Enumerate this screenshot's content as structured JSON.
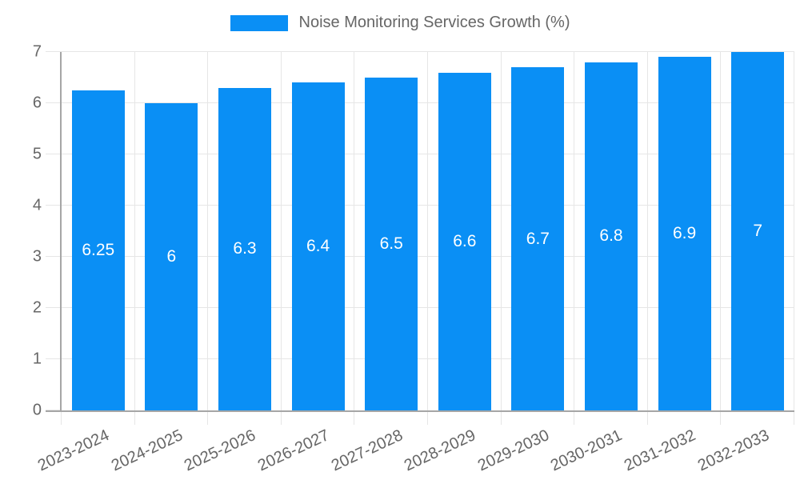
{
  "chart_data": {
    "type": "bar",
    "title": "Noise Monitoring Services Growth (%)",
    "legend": {
      "position": "top",
      "label": "Noise Monitoring Services Growth (%)"
    },
    "categories": [
      "2023-2024",
      "2024-2025",
      "2025-2026",
      "2026-2027",
      "2027-2028",
      "2028-2029",
      "2029-2030",
      "2030-2031",
      "2031-2032",
      "2032-2033"
    ],
    "series": [
      {
        "name": "Noise Monitoring Services Growth (%)",
        "values": [
          6.25,
          6,
          6.3,
          6.4,
          6.5,
          6.6,
          6.7,
          6.8,
          6.9,
          7
        ]
      }
    ],
    "data_labels": [
      "6.25",
      "6",
      "6.3",
      "6.4",
      "6.5",
      "6.6",
      "6.7",
      "6.8",
      "6.9",
      "7"
    ],
    "xlabel": "",
    "ylabel": "",
    "ylim": [
      0,
      7
    ],
    "yticks": [
      0,
      1,
      2,
      3,
      4,
      5,
      6,
      7
    ],
    "grid": true,
    "colors": {
      "bar": "#0a8ff5",
      "bar_label_text": "#ffffff",
      "axis_text": "#666666",
      "gridline": "#e6e6e6",
      "axis_line": "#a6a6a6",
      "background": "#ffffff"
    }
  }
}
